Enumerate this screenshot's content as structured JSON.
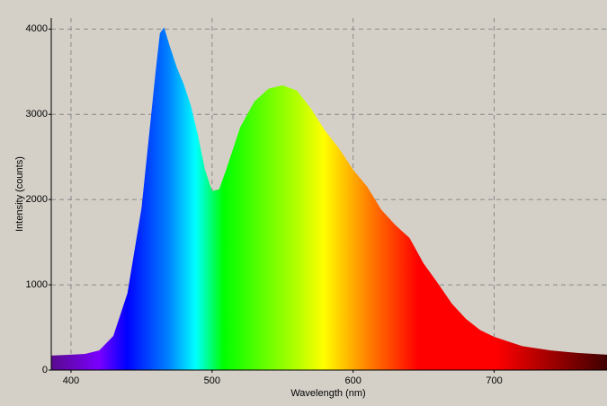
{
  "chart_data": {
    "type": "area",
    "x_label": "Wavelength (nm)",
    "y_label": "Intensity (counts)",
    "x": [
      386,
      400,
      410,
      420,
      430,
      440,
      450,
      455,
      460,
      463,
      466,
      470,
      475,
      480,
      485,
      490,
      495,
      500,
      505,
      510,
      520,
      530,
      540,
      550,
      560,
      570,
      580,
      590,
      600,
      610,
      620,
      630,
      640,
      650,
      660,
      670,
      680,
      690,
      700,
      720,
      740,
      760,
      780
    ],
    "values": [
      170,
      180,
      190,
      230,
      400,
      900,
      1900,
      2700,
      3500,
      3950,
      4020,
      3800,
      3550,
      3350,
      3100,
      2750,
      2350,
      2100,
      2120,
      2350,
      2850,
      3150,
      3300,
      3340,
      3280,
      3070,
      2810,
      2600,
      2350,
      2150,
      1880,
      1700,
      1550,
      1250,
      1020,
      780,
      600,
      470,
      390,
      280,
      230,
      200,
      180
    ],
    "xlim": [
      386,
      780
    ],
    "ylim": [
      0,
      4130
    ],
    "xticks": [
      400,
      500,
      600,
      700
    ],
    "yticks": [
      0,
      1000,
      2000,
      3000,
      4000
    ],
    "grid": true
  }
}
